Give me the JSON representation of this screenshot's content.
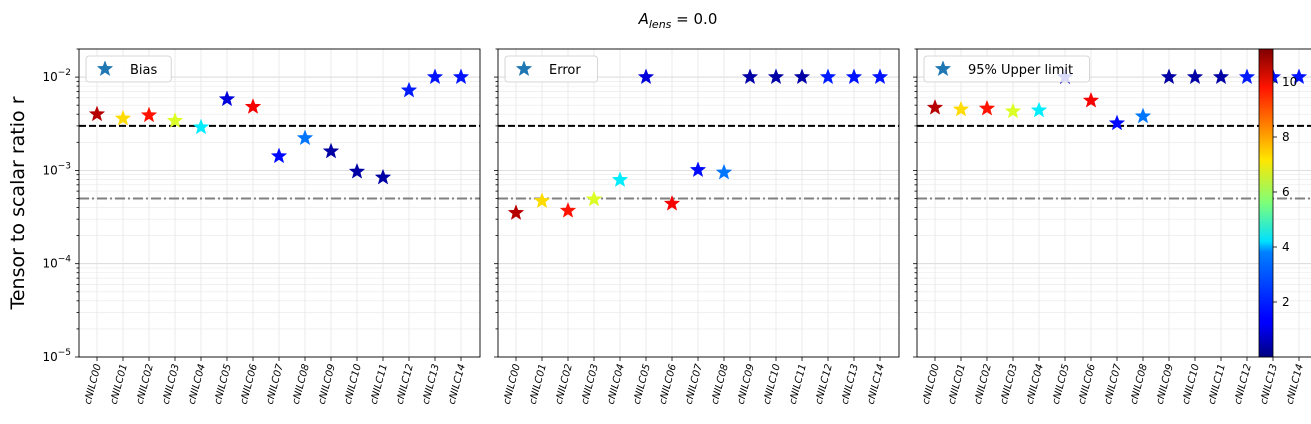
{
  "figure": {
    "suptitle_symbol": "A",
    "suptitle_subscript": "lens",
    "suptitle_value": " = 0.0",
    "ylabel": "Tensor to scalar ratio r"
  },
  "reference_lines": [
    {
      "y": 0.003,
      "style": "dashed",
      "color": "#000000"
    },
    {
      "y": 0.0005,
      "style": "dashdot",
      "color": "#808080"
    }
  ],
  "colorbar": {
    "colormap": "jet",
    "min": 0.0,
    "max": 11.2,
    "ticks": [
      2,
      4,
      6,
      8,
      10
    ]
  },
  "chart_data": [
    {
      "type": "scatter",
      "marker": "star",
      "legend": "Bias",
      "legend_position": "top-left",
      "yscale": "log",
      "ylim": [
        1e-05,
        0.02
      ],
      "grid": true,
      "categories": [
        "cNILC00",
        "cNILC01",
        "cNILC02",
        "cNILC03",
        "cNILC04",
        "cNILC05",
        "cNILC06",
        "cNILC07",
        "cNILC08",
        "cNILC09",
        "cNILC10",
        "cNILC11",
        "cNILC12",
        "cNILC13",
        "cNILC14"
      ],
      "values": [
        0.004,
        0.0036,
        0.0039,
        0.0034,
        0.0029,
        0.0058,
        0.0048,
        0.00142,
        0.00222,
        0.0016,
        0.00097,
        0.00084,
        0.0072,
        0.01,
        0.01
      ],
      "color_values": [
        10.6,
        7.4,
        9.6,
        6.6,
        4.0,
        1.0,
        9.9,
        1.5,
        2.7,
        0.4,
        0.4,
        0.4,
        1.7,
        1.6,
        1.6
      ]
    },
    {
      "type": "scatter",
      "marker": "star",
      "legend": "Error",
      "legend_position": "top-left",
      "yscale": "log",
      "ylim": [
        1e-05,
        0.02
      ],
      "grid": true,
      "categories": [
        "cNILC00",
        "cNILC01",
        "cNILC02",
        "cNILC03",
        "cNILC04",
        "cNILC05",
        "cNILC06",
        "cNILC07",
        "cNILC08",
        "cNILC09",
        "cNILC10",
        "cNILC11",
        "cNILC12",
        "cNILC13",
        "cNILC14"
      ],
      "values": [
        0.00035,
        0.00047,
        0.00037,
        0.00049,
        0.00079,
        0.01,
        0.00044,
        0.00101,
        0.00095,
        0.01,
        0.01,
        0.01,
        0.01,
        0.01,
        0.01
      ],
      "color_values": [
        10.6,
        7.4,
        9.6,
        6.6,
        4.0,
        1.0,
        9.9,
        1.5,
        2.7,
        0.4,
        0.4,
        0.4,
        1.7,
        1.6,
        1.6
      ]
    },
    {
      "type": "scatter",
      "marker": "star",
      "legend": "95% Upper limit",
      "legend_position": "top-left",
      "yscale": "log",
      "ylim": [
        1e-05,
        0.02
      ],
      "grid": true,
      "categories": [
        "cNILC00",
        "cNILC01",
        "cNILC02",
        "cNILC03",
        "cNILC04",
        "cNILC05",
        "cNILC06",
        "cNILC07",
        "cNILC08",
        "cNILC09",
        "cNILC10",
        "cNILC11",
        "cNILC12",
        "cNILC13",
        "cNILC14"
      ],
      "values": [
        0.0047,
        0.0045,
        0.0046,
        0.0043,
        0.0044,
        0.01,
        0.0056,
        0.0032,
        0.0038,
        0.01,
        0.01,
        0.01,
        0.01,
        0.01,
        0.01
      ],
      "color_values": [
        10.6,
        7.4,
        9.6,
        6.6,
        4.0,
        1.0,
        9.9,
        1.5,
        2.7,
        0.4,
        0.4,
        0.4,
        1.7,
        1.6,
        1.6
      ]
    }
  ]
}
